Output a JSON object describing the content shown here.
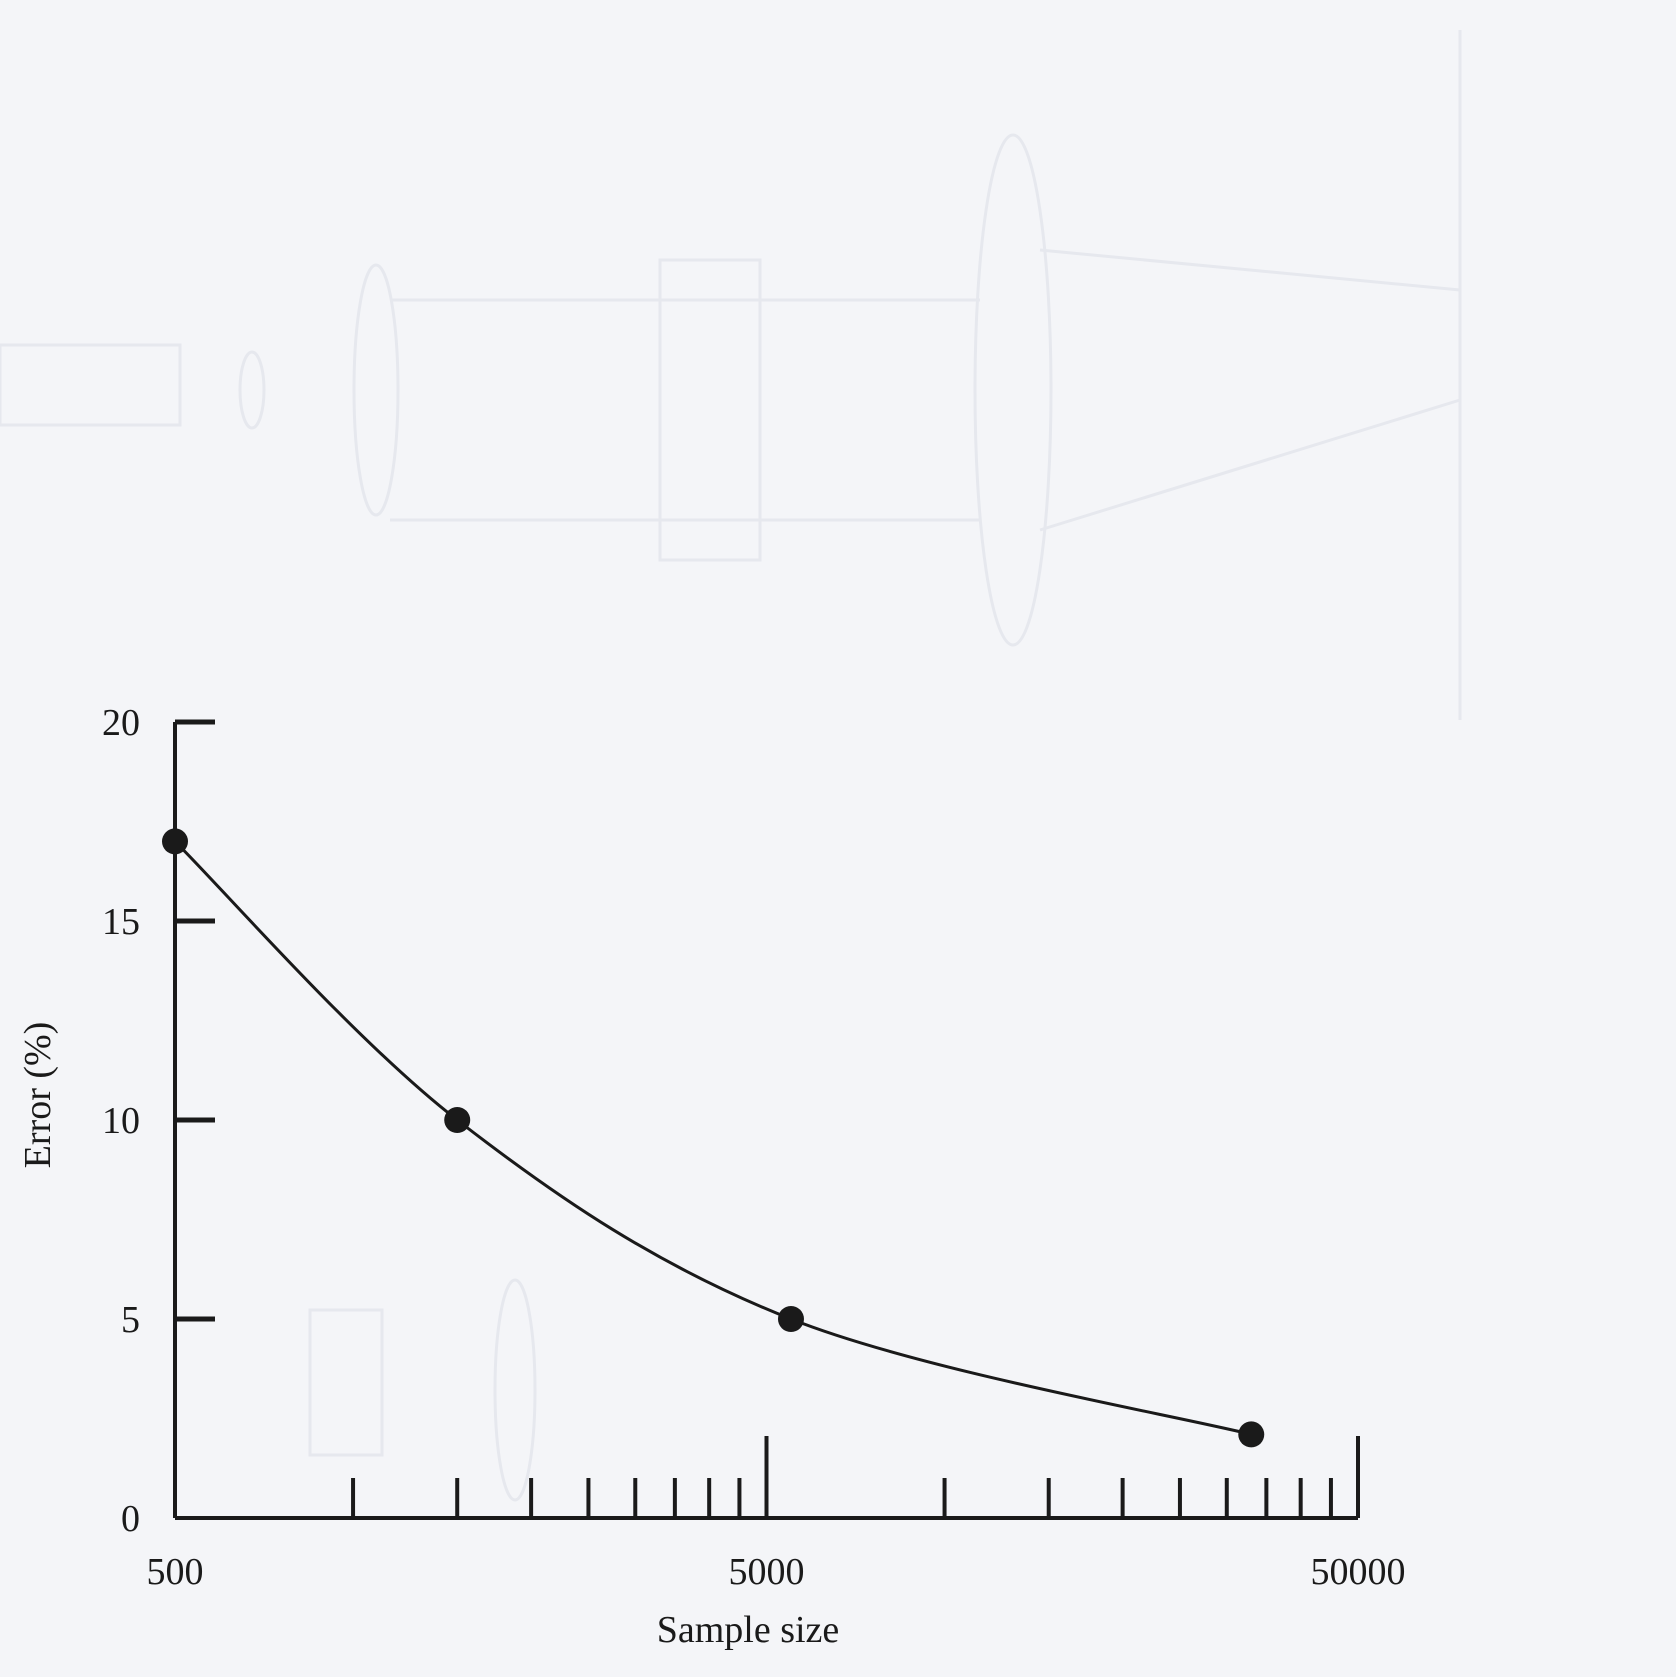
{
  "chart_data": {
    "type": "line",
    "title": "",
    "xlabel": "Sample size",
    "ylabel": "Error (%)",
    "xscale": "log",
    "xlim": [
      500,
      50000
    ],
    "ylim": [
      0,
      20
    ],
    "x_tick_labels": [
      "500",
      "5000",
      "50000"
    ],
    "y_tick_labels": [
      "0",
      "5",
      "10",
      "15",
      "20"
    ],
    "grid": false,
    "series": [
      {
        "x": [
          500,
          1500,
          5500,
          33000
        ],
        "y": [
          17,
          10,
          5,
          2.1
        ]
      }
    ]
  }
}
